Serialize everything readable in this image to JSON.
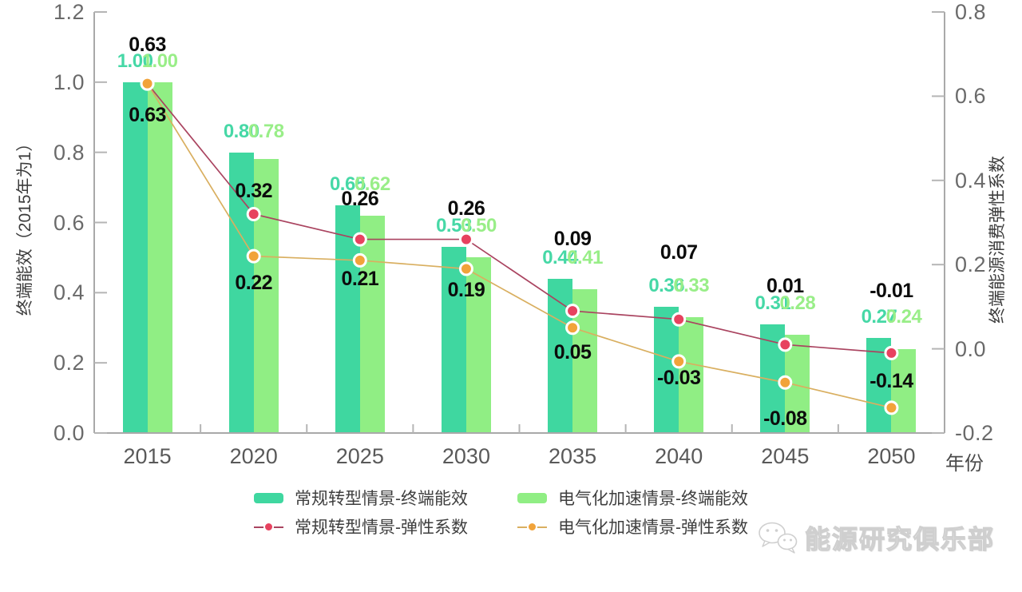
{
  "chart_data": {
    "type": "combo",
    "categories": [
      "2015",
      "2020",
      "2025",
      "2030",
      "2035",
      "2040",
      "2045",
      "2050"
    ],
    "x_axis_label": "年份",
    "left_axis": {
      "label": "终端能效（2015年为1）",
      "min": 0.0,
      "max": 1.2,
      "ticks": [
        "0.0",
        "0.2",
        "0.4",
        "0.6",
        "0.8",
        "1.0",
        "1.2"
      ]
    },
    "right_axis": {
      "label": "终端能源消费弹性系数",
      "min": -0.2,
      "max": 0.8,
      "ticks": [
        "-0.2",
        "0.0",
        "0.2",
        "0.4",
        "0.6",
        "0.8"
      ]
    },
    "grid": false,
    "legend_position": "bottom",
    "series": [
      {
        "name": "常规转型情景-终端能效",
        "type": "bar",
        "axis": "left",
        "color": "#3fd7a0",
        "label_color": "#46d8a6",
        "values": [
          1.0,
          0.8,
          0.65,
          0.53,
          0.44,
          0.36,
          0.31,
          0.27
        ]
      },
      {
        "name": "电气化加速情景-终端能效",
        "type": "bar",
        "axis": "left",
        "color": "#90ee84",
        "label_color": "#99ee88",
        "values": [
          1.0,
          0.78,
          0.62,
          0.5,
          0.41,
          0.33,
          0.28,
          0.24
        ]
      },
      {
        "name": "常规转型情景-弹性系数",
        "type": "line",
        "axis": "right",
        "line_color": "#aa4460",
        "dot_color": "#e7425f",
        "label_color": "#0c0c0c",
        "values": [
          0.63,
          0.32,
          0.26,
          0.26,
          0.09,
          0.07,
          0.01,
          -0.01
        ],
        "label_dy": [
          -50,
          -30,
          -52,
          -40,
          -91,
          -85,
          -74,
          -79
        ]
      },
      {
        "name": "电气化加速情景-弹性系数",
        "type": "line",
        "axis": "right",
        "line_color": "#d9af60",
        "dot_color": "#f1a33a",
        "label_color": "#0c0c0c",
        "values": [
          0.63,
          0.22,
          0.21,
          0.19,
          0.05,
          -0.03,
          -0.08,
          -0.14
        ],
        "label_dy": [
          38,
          32,
          22,
          26,
          30,
          20,
          44,
          -34
        ]
      }
    ]
  },
  "watermark": {
    "text": "能源研究俱乐部"
  }
}
